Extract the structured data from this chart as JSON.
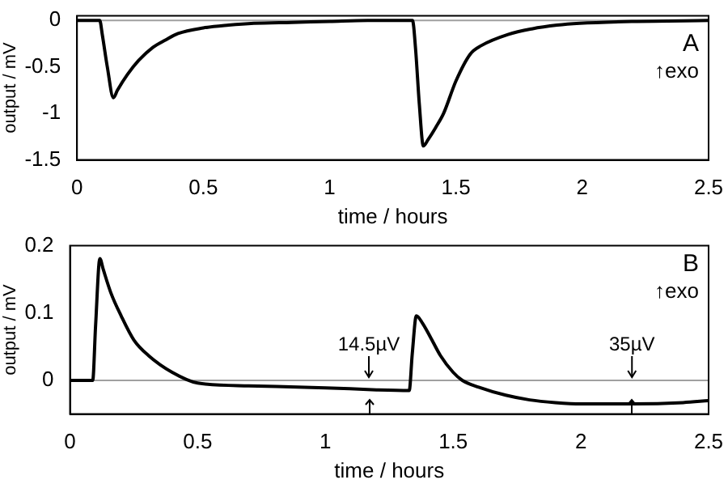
{
  "chart_data": [
    {
      "type": "line",
      "xlabel": "time / hours",
      "ylabel": "output / mV",
      "xlim": [
        0,
        2.5
      ],
      "xticks": [
        0,
        0.5,
        1,
        1.5,
        2,
        2.5
      ],
      "ylim": [
        -1.5,
        0.05
      ],
      "yticks": [
        -1.5,
        -1,
        -0.5,
        0
      ],
      "grid": false,
      "legend": false,
      "marker": "none",
      "line_style": "solid",
      "ref_lines": [
        {
          "axis": "y",
          "value": 0,
          "color": "#a0a0a0"
        }
      ],
      "annotations": [
        "A",
        "↑exo"
      ],
      "series": [
        {
          "color": "#000000",
          "x": [
            0,
            0.09,
            0.1,
            0.12,
            0.144,
            0.16,
            0.2,
            0.244,
            0.3,
            0.35,
            0.4,
            0.5,
            0.6,
            0.7,
            0.85,
            1.0,
            1.15,
            1.328,
            1.34,
            1.355,
            1.371,
            1.39,
            1.42,
            1.451,
            1.5,
            1.557,
            1.6,
            1.706,
            1.8,
            1.9,
            1.99,
            2.2,
            2.5
          ],
          "values": [
            0,
            0,
            -0.15,
            -0.5,
            -0.83,
            -0.75,
            -0.58,
            -0.43,
            -0.29,
            -0.21,
            -0.14,
            -0.08,
            -0.05,
            -0.03,
            -0.02,
            -0.01,
            0,
            0,
            -0.3,
            -0.9,
            -1.35,
            -1.28,
            -1.15,
            -1.0,
            -0.65,
            -0.36,
            -0.27,
            -0.15,
            -0.09,
            -0.05,
            -0.03,
            -0.01,
            0
          ]
        }
      ]
    },
    {
      "type": "line",
      "xlabel": "time / hours",
      "ylabel": "output / mV",
      "xlim": [
        0,
        2.5
      ],
      "xticks": [
        0,
        0.5,
        1,
        1.5,
        2,
        2.5
      ],
      "ylim": [
        -0.05,
        0.2
      ],
      "yticks": [
        0,
        0.1,
        0.2
      ],
      "grid": false,
      "legend": false,
      "marker": "none",
      "line_style": "solid",
      "ref_lines": [
        {
          "axis": "y",
          "value": 0,
          "color": "#a0a0a0"
        }
      ],
      "annotations": [
        "B",
        "↑exo",
        {
          "text": "14.5µV",
          "x": 1.17,
          "y": 0
        },
        {
          "text": "35µV",
          "x": 2.2,
          "y": 0
        }
      ],
      "series": [
        {
          "color": "#000000",
          "x": [
            0,
            0.089,
            0.1,
            0.117,
            0.13,
            0.16,
            0.2,
            0.25,
            0.307,
            0.4,
            0.5,
            0.7,
            1.0,
            1.2,
            1.328,
            1.34,
            1.356,
            1.38,
            1.41,
            1.45,
            1.5,
            1.536,
            1.6,
            1.706,
            1.8,
            1.9,
            2.0,
            2.2,
            2.4,
            2.5
          ],
          "values": [
            0,
            0,
            0.08,
            0.181,
            0.165,
            0.13,
            0.096,
            0.06,
            0.037,
            0.012,
            -0.004,
            -0.008,
            -0.011,
            -0.014,
            -0.015,
            0.04,
            0.096,
            0.085,
            0.065,
            0.037,
            0.012,
            0,
            -0.01,
            -0.022,
            -0.029,
            -0.033,
            -0.035,
            -0.035,
            -0.033,
            -0.03
          ]
        }
      ]
    }
  ]
}
